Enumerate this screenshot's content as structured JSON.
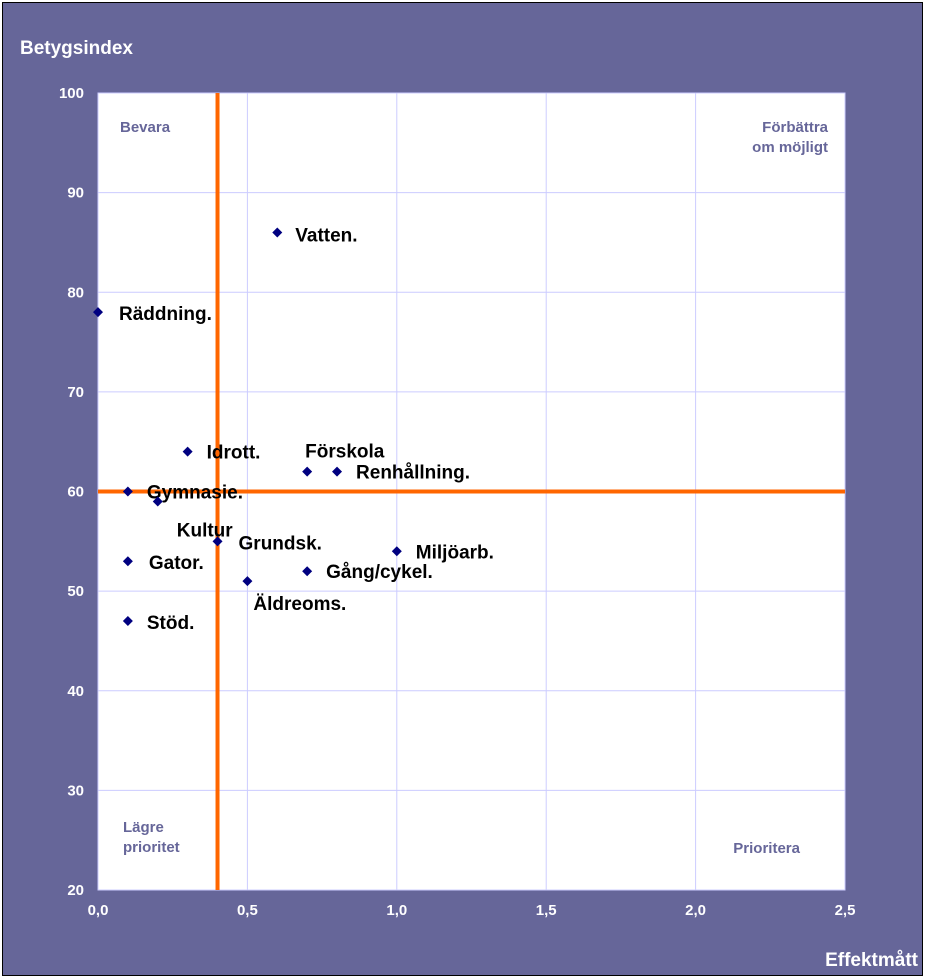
{
  "chart_data": {
    "type": "scatter",
    "title": "",
    "ylabel": "Betygsindex",
    "xlabel": "Effektmått",
    "xlim": [
      0,
      2.5
    ],
    "ylim": [
      20,
      100
    ],
    "x_ticks": [
      0,
      0.5,
      1.0,
      1.5,
      2.0,
      2.5
    ],
    "x_tick_labels": [
      "0,0",
      "0,5",
      "1,0",
      "1,5",
      "2,0",
      "2,5"
    ],
    "y_ticks": [
      20,
      30,
      40,
      50,
      60,
      70,
      80,
      90,
      100
    ],
    "y_tick_labels": [
      "20",
      "30",
      "40",
      "50",
      "60",
      "70",
      "80",
      "90",
      "100"
    ],
    "grid": true,
    "reference_lines": {
      "x": 0.4,
      "y": 60,
      "color": "#FF6600"
    },
    "quadrant_labels": {
      "top_left": "Bevara",
      "top_right": [
        "Förbättra",
        "om möjligt"
      ],
      "bottom_left": [
        "Lägre",
        "prioritet"
      ],
      "bottom_right": "Prioritera"
    },
    "points": [
      {
        "label": "Vatten.",
        "x": 0.6,
        "y": 86
      },
      {
        "label": "Räddning.",
        "x": 0.0,
        "y": 78
      },
      {
        "label": "Idrott.",
        "x": 0.3,
        "y": 64
      },
      {
        "label": "Förskola",
        "x": 0.7,
        "y": 62
      },
      {
        "label": "Renhållning.",
        "x": 0.8,
        "y": 62
      },
      {
        "label": "Gymnasie.",
        "x": 0.1,
        "y": 60
      },
      {
        "label": "Kultur",
        "x": 0.2,
        "y": 59
      },
      {
        "label": "Grundsk.",
        "x": 0.4,
        "y": 55
      },
      {
        "label": "Miljöarb.",
        "x": 1.0,
        "y": 54
      },
      {
        "label": "Gator.",
        "x": 0.1,
        "y": 53
      },
      {
        "label": "Gång/cykel.",
        "x": 0.7,
        "y": 52
      },
      {
        "label": "Äldreoms.",
        "x": 0.5,
        "y": 51
      },
      {
        "label": "Stöd.",
        "x": 0.1,
        "y": 47
      }
    ],
    "colors": {
      "background": "#666699",
      "plot": "#FFFFFF",
      "grid": "#CCCCFF",
      "marker": "#000080"
    }
  }
}
